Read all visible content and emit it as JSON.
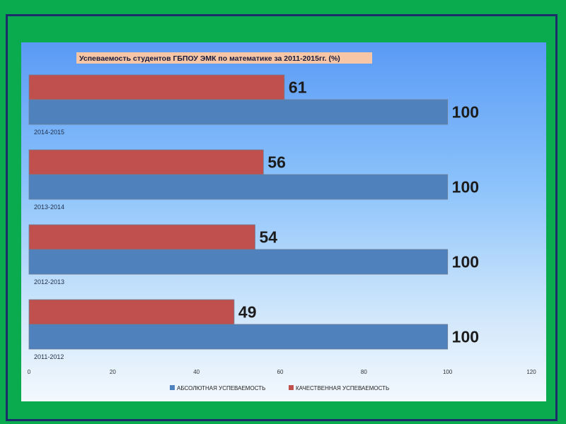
{
  "chart_data": {
    "type": "bar",
    "orientation": "horizontal",
    "title": "Успеваемость студентов ГБПОУ ЭМК по математике за 2011-2015гг. (%)",
    "categories": [
      "2014-2015",
      "2013-2014",
      "2012-2013",
      "2011-2012"
    ],
    "series": [
      {
        "name": "КАЧЕСТВЕННАЯ УСПЕВАЕМОСТЬ",
        "color": "#c0504d",
        "values": [
          61,
          56,
          54,
          49
        ]
      },
      {
        "name": "АБСОЛЮТНАЯ УСПЕВАЕМОСТЬ",
        "color": "#4f81bd",
        "values": [
          100,
          100,
          100,
          100
        ]
      }
    ],
    "x_ticks": [
      "0",
      "20",
      "40",
      "60",
      "80",
      "100",
      "120"
    ],
    "xlim": [
      0,
      120
    ],
    "legend_order": [
      "АБСОЛЮТНАЯ УСПЕВАЕМОСТЬ",
      "КАЧЕСТВЕННАЯ УСПЕВАЕМОСТЬ"
    ],
    "legend_position": "bottom",
    "grid": false
  }
}
